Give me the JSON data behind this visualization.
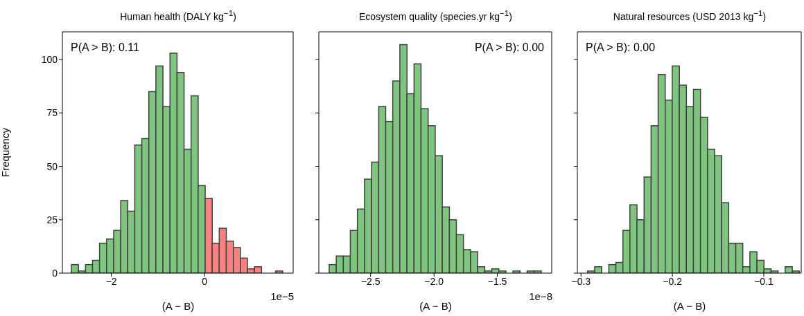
{
  "chart_data": [
    {
      "type": "histogram",
      "title": "Human health (DALY kg$^{−1}$)",
      "xlabel": "(A − B)",
      "ylabel": "Frequency",
      "annotations": [
        "P(A > B): 0.11",
        "1e−5"
      ],
      "bins": [
        -2.855,
        -2.704,
        -2.553,
        -2.402,
        -2.251,
        -2.1,
        -1.949,
        -1.798,
        -1.647,
        -1.496,
        -1.345,
        -1.194,
        -1.043,
        -0.892,
        -0.741,
        -0.59,
        -0.439,
        -0.288,
        -0.137,
        0.014,
        0.165,
        0.316,
        0.467,
        0.618,
        0.769,
        0.92,
        1.071,
        1.222,
        1.373,
        1.524,
        1.675
      ],
      "values": [
        4,
        1,
        4,
        6,
        14,
        16,
        20,
        34,
        29,
        60,
        63,
        85,
        97,
        78,
        103,
        94,
        58,
        83,
        41,
        35,
        14,
        21,
        15,
        12,
        7,
        2,
        3,
        0,
        0,
        1
      ],
      "colors": [
        "#7fc57f",
        "#7fc57f",
        "#7fc57f",
        "#7fc57f",
        "#7fc57f",
        "#7fc57f",
        "#7fc57f",
        "#7fc57f",
        "#7fc57f",
        "#7fc57f",
        "#7fc57f",
        "#7fc57f",
        "#7fc57f",
        "#7fc57f",
        "#7fc57f",
        "#7fc57f",
        "#7fc57f",
        "#7fc57f",
        "#7fc57f",
        "#ff8080",
        "#ff8080",
        "#ff8080",
        "#ff8080",
        "#ff8080",
        "#ff8080",
        "#ff8080",
        "#ff8080",
        "#ff8080",
        "#ff8080",
        "#ff8080"
      ],
      "xlim": [
        -3.05,
        1.9
      ],
      "xticks": [
        {
          "value": -2,
          "label": "−2"
        },
        0
      ],
      "ylim": [
        0,
        113
      ],
      "yticks": [
        0,
        25,
        50,
        75,
        100
      ],
      "grid": false,
      "legend": false
    },
    {
      "type": "histogram",
      "title": "Ecosystem quality (species.yr kg$^{−1}$)",
      "xlabel": "(A − B)",
      "annotations": [
        "P(A > B): 0.00",
        "1e−8"
      ],
      "bins": [
        -2.827,
        -2.771,
        -2.715,
        -2.66,
        -2.604,
        -2.548,
        -2.492,
        -2.436,
        -2.381,
        -2.325,
        -2.269,
        -2.213,
        -2.157,
        -2.102,
        -2.046,
        -1.99,
        -1.934,
        -1.878,
        -1.823,
        -1.767,
        -1.711,
        -1.655,
        -1.599,
        -1.544,
        -1.488,
        -1.432,
        -1.376,
        -1.32,
        -1.265,
        -1.209,
        -1.153
      ],
      "values": [
        4,
        8,
        8,
        20,
        30,
        44,
        52,
        78,
        71,
        90,
        107,
        84,
        98,
        77,
        69,
        55,
        31,
        25,
        18,
        11,
        10,
        3,
        1,
        2,
        1,
        0,
        1,
        0,
        1,
        1
      ],
      "color": "#7fc57f",
      "xlim": [
        -2.909,
        -1.071
      ],
      "xticks": [
        {
          "value": -2.5,
          "label": "−2.5"
        },
        {
          "value": -2,
          "label": "−2.0"
        },
        {
          "value": -1.5,
          "label": "−1.5"
        }
      ],
      "ylim": [
        0,
        113
      ],
      "yticks": [
        {
          "value": 0,
          "label": null
        },
        {
          "value": 25,
          "label": null
        },
        {
          "value": 50,
          "label": null
        },
        {
          "value": 75,
          "label": null
        },
        {
          "value": 100,
          "label": null
        }
      ],
      "tick_labels": "x",
      "grid": false,
      "legend": false
    },
    {
      "type": "histogram",
      "title": "Natural resources (USD 2013 kg$^{−1}$)",
      "xlabel": "(A − B)",
      "annotations": [
        "P(A > B): 0.00"
      ],
      "bins": [
        -0.2927,
        -0.285,
        -0.2773,
        -0.2695,
        -0.2618,
        -0.2541,
        -0.2464,
        -0.2387,
        -0.2309,
        -0.2232,
        -0.2155,
        -0.2078,
        -0.2001,
        -0.1923,
        -0.1846,
        -0.1769,
        -0.1692,
        -0.1615,
        -0.1537,
        -0.146,
        -0.1383,
        -0.1306,
        -0.1229,
        -0.1151,
        -0.1074,
        -0.0997,
        -0.092,
        -0.0843,
        -0.0765,
        -0.0688,
        -0.0611
      ],
      "values": [
        1,
        3,
        0,
        4,
        5,
        20,
        32,
        25,
        45,
        69,
        93,
        81,
        97,
        88,
        78,
        86,
        73,
        58,
        55,
        33,
        14,
        14,
        3,
        10,
        6,
        2,
        1,
        0,
        3,
        1
      ],
      "color": "#7fc57f",
      "xlim": [
        -0.304,
        -0.059
      ],
      "xticks": [
        {
          "value": -0.3,
          "label": "−0.3"
        },
        {
          "value": -0.2,
          "label": "−0.2"
        },
        {
          "value": -0.1,
          "label": "−0.1"
        }
      ],
      "ylim": [
        0,
        113
      ],
      "yticks": [
        {
          "value": 0,
          "label": null
        },
        {
          "value": 25,
          "label": null
        },
        {
          "value": 50,
          "label": null
        },
        {
          "value": 75,
          "label": null
        },
        {
          "value": 100,
          "label": null
        }
      ],
      "tick_labels": "x",
      "grid": false,
      "legend": false
    }
  ]
}
